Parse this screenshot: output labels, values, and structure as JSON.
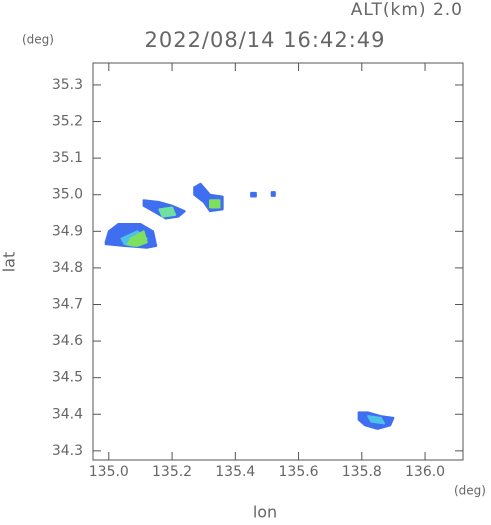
{
  "chart_data": {
    "type": "echo-map",
    "title": "2022/08/14 16:42:49",
    "subtitle": "ALT(km) 2.0",
    "x_label": "lon",
    "y_label": "lat",
    "x_unit": "(deg)",
    "y_unit": "(deg)",
    "xlim": [
      134.95,
      136.12
    ],
    "ylim": [
      34.275,
      35.36
    ],
    "xticks": [
      {
        "value": 135,
        "label": "135.0"
      },
      135.2,
      135.4,
      135.6,
      135.8,
      {
        "value": 136,
        "label": "136.0"
      }
    ],
    "yticks": [
      34.3,
      34.4,
      34.5,
      34.6,
      34.7,
      34.8,
      34.9,
      {
        "value": 35,
        "label": "35.0"
      },
      35.1,
      35.2,
      35.3
    ],
    "echoes": [
      {
        "color": "#3f6ff0",
        "lon": [
          134.99,
          135.0,
          135.03,
          135.1,
          135.14,
          135.15,
          135.12,
          135.05,
          134.99
        ],
        "lat": [
          34.87,
          34.9,
          34.92,
          34.92,
          34.9,
          34.86,
          34.855,
          34.86,
          34.865
        ]
      },
      {
        "color": "#4ec1e8",
        "lon": [
          135.04,
          135.09,
          135.12,
          135.08,
          135.05
        ],
        "lat": [
          34.88,
          34.9,
          34.88,
          34.86,
          34.865
        ]
      },
      {
        "color": "#7fe060",
        "lon": [
          135.07,
          135.11,
          135.12,
          135.09,
          135.06
        ],
        "lat": [
          34.88,
          34.9,
          34.87,
          34.86,
          34.865
        ]
      },
      {
        "color": "#3f6ff0",
        "lon": [
          135.11,
          135.16,
          135.2,
          135.24,
          135.22,
          135.18,
          135.14,
          135.11
        ],
        "lat": [
          34.985,
          34.98,
          34.97,
          34.955,
          34.94,
          34.935,
          34.955,
          34.97
        ]
      },
      {
        "color": "#6ee0a0",
        "lon": [
          135.16,
          135.2,
          135.21,
          135.17
        ],
        "lat": [
          34.96,
          34.965,
          34.945,
          34.94
        ]
      },
      {
        "color": "#3f6ff0",
        "lon": [
          135.27,
          135.29,
          135.32,
          135.36,
          135.36,
          135.32,
          135.3,
          135.27
        ],
        "lat": [
          35.02,
          35.03,
          35.0,
          34.995,
          34.96,
          34.955,
          34.98,
          35.0
        ]
      },
      {
        "color": "#7fe060",
        "lon": [
          135.32,
          135.35,
          135.35,
          135.32
        ],
        "lat": [
          34.985,
          34.985,
          34.965,
          34.965
        ]
      },
      {
        "color": "#3f6ff0",
        "lon": [
          135.45,
          135.465,
          135.465,
          135.45
        ],
        "lat": [
          35.005,
          35.005,
          34.995,
          34.995
        ]
      },
      {
        "color": "#3f6ff0",
        "lon": [
          135.515,
          135.525,
          135.525,
          135.515
        ],
        "lat": [
          35.007,
          35.007,
          34.997,
          34.997
        ]
      },
      {
        "color": "#3f6ff0",
        "lon": [
          135.79,
          135.82,
          135.86,
          135.9,
          135.89,
          135.85,
          135.81,
          135.79
        ],
        "lat": [
          34.405,
          34.405,
          34.395,
          34.39,
          34.37,
          34.36,
          34.37,
          34.385
        ]
      },
      {
        "color": "#4ec1e8",
        "lon": [
          135.82,
          135.86,
          135.87,
          135.83
        ],
        "lat": [
          34.395,
          34.39,
          34.375,
          34.38
        ]
      }
    ]
  }
}
